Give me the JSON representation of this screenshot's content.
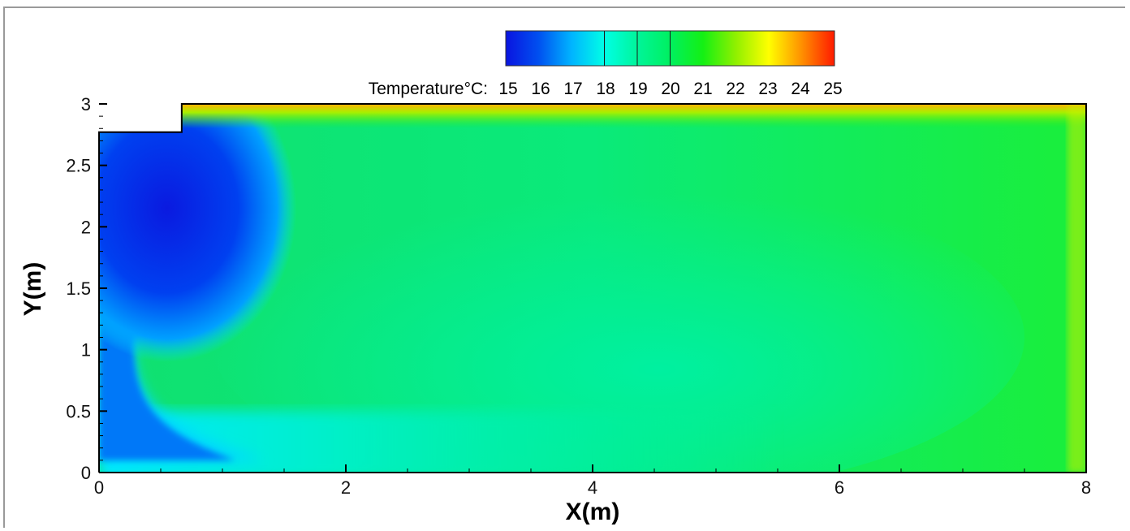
{
  "chart_data": {
    "type": "heatmap",
    "title": "",
    "xlabel": "X(m)",
    "ylabel": "Y(m)",
    "xlim": [
      0,
      8
    ],
    "ylim": [
      0,
      3
    ],
    "x_ticks": [
      "0",
      "2",
      "4",
      "6",
      "8"
    ],
    "x_tick_values": [
      0,
      2,
      4,
      6,
      8
    ],
    "y_ticks": [
      "0",
      "0.5",
      "1",
      "1.5",
      "2",
      "2.5",
      "3"
    ],
    "y_tick_values": [
      0,
      0.5,
      1,
      1.5,
      2,
      2.5,
      3
    ],
    "grid": false,
    "colorbar": {
      "title": "Temperature°C:",
      "placement": "top",
      "range": [
        15,
        25
      ],
      "labels": [
        "15",
        "16",
        "17",
        "18",
        "19",
        "20",
        "21",
        "22",
        "23",
        "24",
        "25"
      ],
      "colors": [
        "#0a14e0",
        "#0050f0",
        "#00b4ff",
        "#00ffe6",
        "#00f59a",
        "#00f060",
        "#14f014",
        "#90f000",
        "#ffff00",
        "#ff9000",
        "#ff1a00"
      ],
      "lines_at": [
        18,
        19,
        20
      ]
    },
    "inlet_step": {
      "x": [
        0,
        0.67
      ],
      "y_bottom": 2.77
    },
    "field_description": "cold jet region near inlet at top-left, warm layer at ceiling, bulk near 19-21"
  }
}
